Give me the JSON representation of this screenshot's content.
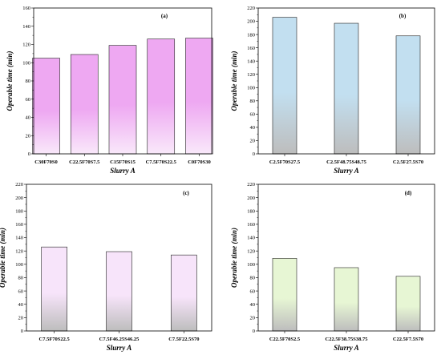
{
  "chart_data": [
    {
      "type": "bar",
      "panel": "(a)",
      "categories": [
        "C30F70S0",
        "C22.5F70S7.5",
        "C15F70S15",
        "C7.5F70S22.5",
        "C0F70S30"
      ],
      "values": [
        105,
        109,
        119,
        126,
        127
      ],
      "xlabel": "Slurry A",
      "ylabel": "Operable time (min)",
      "ylim": [
        0,
        160
      ],
      "yticks": [
        0,
        20,
        40,
        60,
        80,
        100,
        120,
        140,
        160
      ],
      "colors": {
        "top": "#eea8f2",
        "bottom": "#f9e8fa"
      },
      "grid": false
    },
    {
      "type": "bar",
      "panel": "(b)",
      "categories": [
        "C2.5F70S27.5",
        "C2.5F48.75S48.75",
        "C2.5F27.5S70"
      ],
      "values": [
        206,
        197,
        178
      ],
      "xlabel": "Slurry A",
      "ylabel": "Operable time (min)",
      "ylim": [
        0,
        220
      ],
      "yticks": [
        0,
        20,
        40,
        60,
        80,
        100,
        120,
        140,
        160,
        180,
        200,
        220
      ],
      "colors": {
        "top": "#c2dff0",
        "bottom": "#bdbdbd"
      },
      "grid": false
    },
    {
      "type": "bar",
      "panel": "(c)",
      "categories": [
        "C7.5F70S22.5",
        "C7.5F46.25S46.25",
        "C7.5F22.5S70"
      ],
      "values": [
        126,
        119,
        114
      ],
      "xlabel": "Slurry A",
      "ylabel": "Operable time (min)",
      "ylim": [
        0,
        220
      ],
      "yticks": [
        0,
        20,
        40,
        60,
        80,
        100,
        120,
        140,
        160,
        180,
        200,
        220
      ],
      "colors": {
        "top": "#f7e4fa",
        "bottom": "#bdbdbd"
      },
      "grid": false
    },
    {
      "type": "bar",
      "panel": "(d)",
      "categories": [
        "C22.5F70S2.5",
        "C22.5F38.75S38.75",
        "C22.5F7.5S70"
      ],
      "values": [
        109,
        95,
        82
      ],
      "xlabel": "Slurry A",
      "ylabel": "Operable time (min)",
      "ylim": [
        0,
        220
      ],
      "yticks": [
        0,
        20,
        40,
        60,
        80,
        100,
        120,
        140,
        160,
        180,
        200,
        220
      ],
      "colors": {
        "top": "#e7f6d4",
        "bottom": "#bdbdbd"
      },
      "grid": false
    }
  ]
}
